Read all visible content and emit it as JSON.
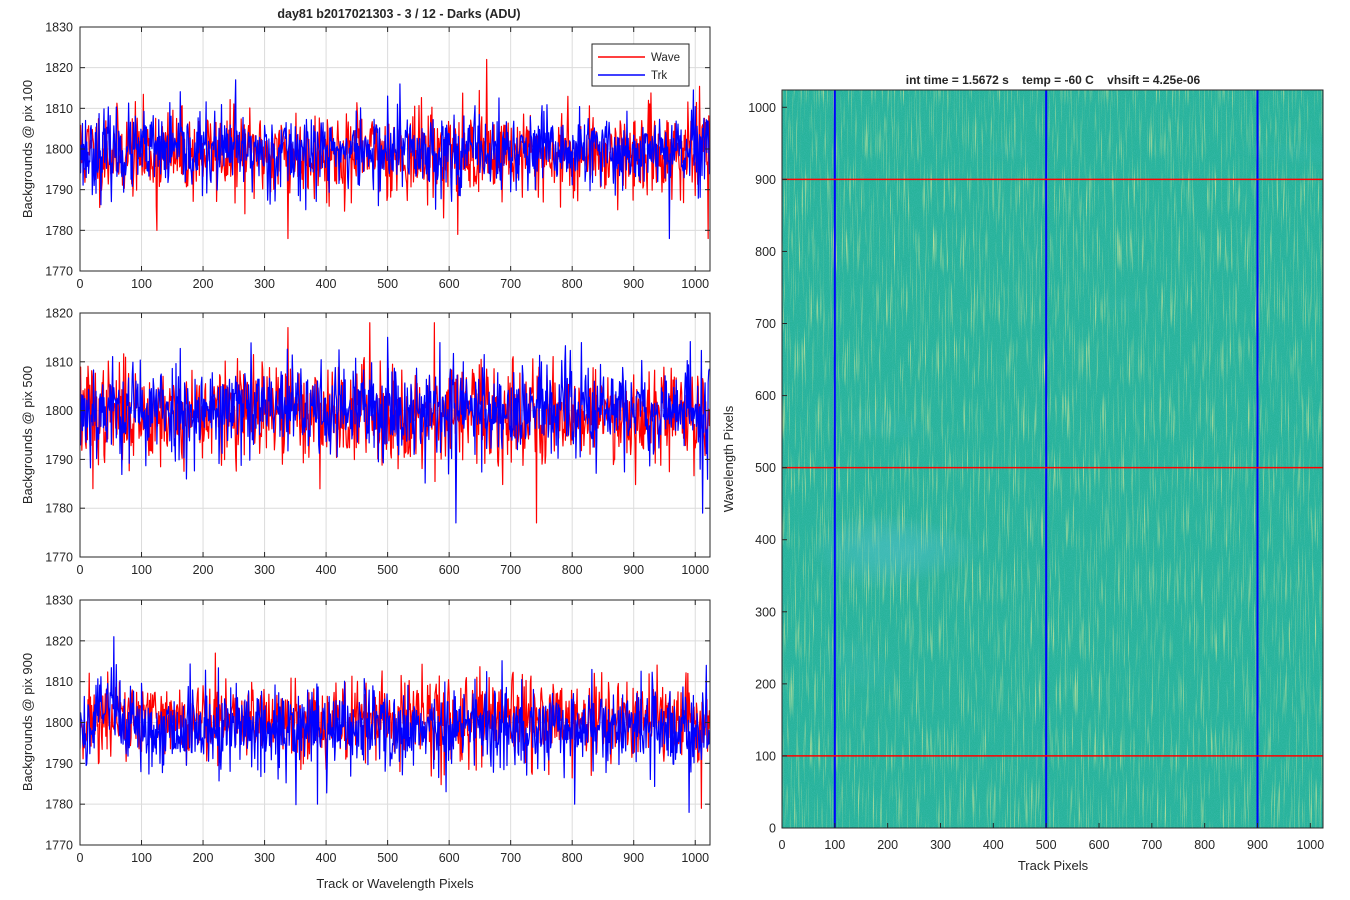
{
  "figure_title": "day81 b2017021303 - 3 / 12 - Darks (ADU)",
  "chart_data": [
    {
      "type": "line",
      "title": "day81 b2017021303 - 3 / 12 - Darks (ADU)",
      "ylabel": "Backgrounds @ pix 100",
      "xlabel": "",
      "xlim": [
        0,
        1024
      ],
      "ylim": [
        1770,
        1830
      ],
      "xticks": [
        0,
        100,
        200,
        300,
        400,
        500,
        600,
        700,
        800,
        900,
        1000
      ],
      "yticks": [
        1770,
        1780,
        1790,
        1800,
        1810,
        1820,
        1830
      ],
      "grid": true,
      "legend": {
        "position": "top-right",
        "entries": [
          "Wave",
          "Trk"
        ]
      },
      "series": [
        {
          "name": "Wave",
          "color": "#ff0000",
          "mean": 1799.0,
          "std": 5.3,
          "seed": 11,
          "spikes": [
            [
              661,
              1822
            ],
            [
              125,
              1780
            ],
            [
              614,
              1779
            ],
            [
              338,
              1778
            ],
            [
              1021,
              1778
            ]
          ]
        },
        {
          "name": "Trk",
          "color": "#0000ff",
          "mean": 1799.3,
          "std": 4.8,
          "seed": 23,
          "spikes": [
            [
              253,
              1817
            ],
            [
              520,
              1816
            ],
            [
              958,
              1778
            ],
            [
              500,
              1813
            ]
          ]
        }
      ]
    },
    {
      "type": "line",
      "ylabel": "Backgrounds @ pix 500",
      "xlabel": "",
      "xlim": [
        0,
        1024
      ],
      "ylim": [
        1770,
        1820
      ],
      "xticks": [
        0,
        100,
        200,
        300,
        400,
        500,
        600,
        700,
        800,
        900,
        1000
      ],
      "yticks": [
        1770,
        1780,
        1790,
        1800,
        1810,
        1820
      ],
      "grid": true,
      "series": [
        {
          "name": "Wave",
          "color": "#ff0000",
          "mean": 1799.5,
          "std": 5.0,
          "seed": 37,
          "spikes": [
            [
              742,
              1777
            ],
            [
              471,
              1818
            ],
            [
              576,
              1818
            ],
            [
              338,
              1817
            ],
            [
              21,
              1784
            ]
          ]
        },
        {
          "name": "Trk",
          "color": "#0000ff",
          "mean": 1800.2,
          "std": 5.0,
          "seed": 53,
          "spikes": [
            [
              611,
              1777
            ],
            [
              1012,
              1779
            ],
            [
              500,
              1815
            ]
          ]
        }
      ]
    },
    {
      "type": "line",
      "ylabel": "Backgrounds @ pix 900",
      "xlabel": "Track or Wavelength Pixels",
      "xlim": [
        0,
        1024
      ],
      "ylim": [
        1770,
        1830
      ],
      "xticks": [
        0,
        100,
        200,
        300,
        400,
        500,
        600,
        700,
        800,
        900,
        1000
      ],
      "yticks": [
        1770,
        1780,
        1790,
        1800,
        1810,
        1820,
        1830
      ],
      "grid": true,
      "series": [
        {
          "name": "Wave",
          "color": "#ff0000",
          "mean": 1800.6,
          "std": 5.0,
          "seed": 71,
          "spikes": [
            [
              1010,
              1779
            ],
            [
              220,
              1817
            ]
          ]
        },
        {
          "name": "Trk",
          "color": "#0000ff",
          "mean": 1798.6,
          "std": 5.2,
          "seed": 89,
          "bump": [
            20,
            70,
            8
          ],
          "spikes": [
            [
              55,
              1821
            ],
            [
              386,
              1780
            ],
            [
              804,
              1780
            ],
            [
              990,
              1778
            ],
            [
              1018,
              1814
            ]
          ]
        }
      ]
    },
    {
      "type": "heatmap",
      "title": "int time = 1.5672 s    temp = -60 C    vhsift = 4.25e-06",
      "xlabel": "Track Pixels",
      "ylabel": "Wavelength Pixels",
      "xlim": [
        0,
        1024
      ],
      "ylim": [
        0,
        1024
      ],
      "xticks": [
        0,
        100,
        200,
        300,
        400,
        500,
        600,
        700,
        800,
        900,
        1000
      ],
      "yticks": [
        0,
        100,
        200,
        300,
        400,
        500,
        600,
        700,
        800,
        900,
        1000
      ],
      "grid": false,
      "colormap": "parula",
      "base_color": "#27b39a",
      "highlight_color": "#b7cf4a",
      "shadow_color": "#2a93c8",
      "marker_lines": {
        "vertical_track_pixels": [
          100,
          500,
          900
        ],
        "vertical_color": "#0000ff",
        "horizontal_wavelength_pixels": [
          100,
          500,
          900
        ],
        "horizontal_color": "#ff0000"
      }
    }
  ]
}
